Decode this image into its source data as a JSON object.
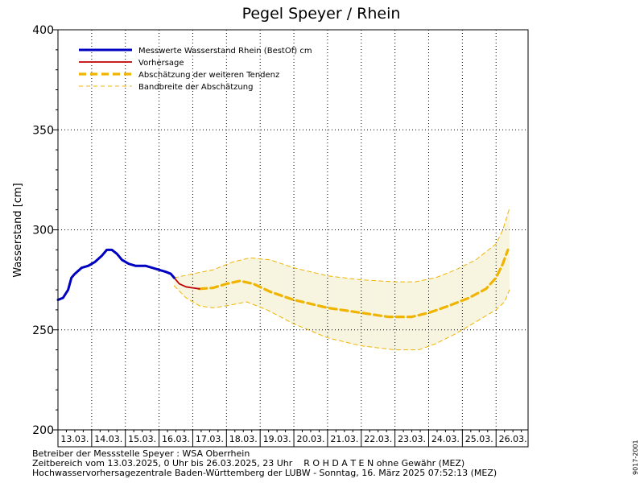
{
  "chart_data": {
    "type": "line",
    "title": "Pegel Speyer / Rhein",
    "ylabel": "Wasserstand [cm]",
    "xlabel": "",
    "ylim": [
      200,
      400
    ],
    "yticks": [
      200,
      250,
      300,
      350,
      400
    ],
    "x_dates": [
      "13.03.",
      "14.03.",
      "15.03.",
      "16.03.",
      "17.03.",
      "18.03.",
      "19.03.",
      "20.03.",
      "21.03.",
      "22.03.",
      "23.03.",
      "24.03.",
      "25.03.",
      "26.03."
    ],
    "x_range_days": [
      0,
      13.95
    ],
    "grid": "dotted",
    "legend_position": "top-left",
    "legend": [
      "Messwerte Wasserstand Rhein (BestOf)   cm",
      "Vorhersage",
      "Abschätzung der weiteren Tendenz",
      "Bandbreite der Abschätzung"
    ],
    "colors": {
      "measured": "#0000c0",
      "forecast": "#c00000",
      "trend": "#f0b400",
      "band_line": "#f0b400",
      "band_fill": "#f7f5e0",
      "grid": "#000000"
    },
    "series": [
      {
        "name": "Messwerte Wasserstand Rhein (BestOf)   cm",
        "style": "solid-thick",
        "points": [
          [
            0.0,
            265
          ],
          [
            0.15,
            266
          ],
          [
            0.3,
            270
          ],
          [
            0.4,
            276
          ],
          [
            0.5,
            278
          ],
          [
            0.7,
            281
          ],
          [
            0.9,
            282
          ],
          [
            1.1,
            284
          ],
          [
            1.3,
            287
          ],
          [
            1.45,
            290
          ],
          [
            1.6,
            290
          ],
          [
            1.75,
            288
          ],
          [
            1.9,
            285
          ],
          [
            2.1,
            283
          ],
          [
            2.3,
            282
          ],
          [
            2.6,
            282
          ],
          [
            2.8,
            281
          ],
          [
            3.0,
            280
          ],
          [
            3.2,
            279
          ],
          [
            3.35,
            278
          ],
          [
            3.45,
            276
          ]
        ]
      },
      {
        "name": "Vorhersage",
        "style": "solid",
        "points": [
          [
            3.45,
            276
          ],
          [
            3.6,
            273
          ],
          [
            3.8,
            271.5
          ],
          [
            4.0,
            271
          ],
          [
            4.2,
            270.5
          ]
        ]
      },
      {
        "name": "Abschätzung der weiteren Tendenz",
        "style": "dashed-thick",
        "points": [
          [
            4.2,
            270.5
          ],
          [
            4.6,
            271
          ],
          [
            5.0,
            273
          ],
          [
            5.4,
            274.5
          ],
          [
            5.8,
            273
          ],
          [
            6.3,
            269
          ],
          [
            7.0,
            265
          ],
          [
            8.0,
            261
          ],
          [
            9.0,
            258.5
          ],
          [
            9.8,
            256.5
          ],
          [
            10.5,
            256.5
          ],
          [
            11.0,
            258.5
          ],
          [
            11.6,
            262
          ],
          [
            12.2,
            266
          ],
          [
            12.7,
            270.5
          ],
          [
            13.0,
            276
          ],
          [
            13.2,
            283
          ],
          [
            13.35,
            290
          ]
        ]
      },
      {
        "name": "Bandbreite der Abschätzung (oben)",
        "style": "dashed-thin",
        "points": [
          [
            3.45,
            276
          ],
          [
            4.0,
            278
          ],
          [
            4.6,
            280
          ],
          [
            5.2,
            284
          ],
          [
            5.7,
            286
          ],
          [
            6.3,
            285
          ],
          [
            7.0,
            281
          ],
          [
            8.0,
            277
          ],
          [
            9.0,
            275
          ],
          [
            10.0,
            274
          ],
          [
            10.6,
            274
          ],
          [
            11.2,
            276
          ],
          [
            11.8,
            280
          ],
          [
            12.4,
            285
          ],
          [
            13.0,
            293
          ],
          [
            13.2,
            300
          ],
          [
            13.4,
            311
          ]
        ]
      },
      {
        "name": "Bandbreite der Abschätzung (unten)",
        "style": "dashed-thin",
        "points": [
          [
            3.45,
            272
          ],
          [
            3.8,
            266
          ],
          [
            4.2,
            262
          ],
          [
            4.6,
            261
          ],
          [
            5.0,
            262
          ],
          [
            5.6,
            264
          ],
          [
            6.2,
            260
          ],
          [
            7.0,
            253
          ],
          [
            8.0,
            246
          ],
          [
            9.0,
            242
          ],
          [
            10.0,
            240
          ],
          [
            10.7,
            240
          ],
          [
            11.2,
            243
          ],
          [
            11.8,
            248
          ],
          [
            12.4,
            254
          ],
          [
            13.0,
            260
          ],
          [
            13.25,
            264
          ],
          [
            13.4,
            270
          ]
        ]
      }
    ]
  },
  "footer": {
    "line1": "Betreiber der Messstelle Speyer : WSA Oberrhein",
    "line2": "Zeitbereich vom 13.03.2025, 0 Uhr bis 26.03.2025, 23 Uhr    R O H D A T E N ohne Gewähr (MEZ)",
    "line3": "Hochwasservorhersagezentrale Baden-Württemberg der LUBW - Sonntag, 16. März 2025 07:52:13 (MEZ)",
    "code": "9017-2001"
  }
}
